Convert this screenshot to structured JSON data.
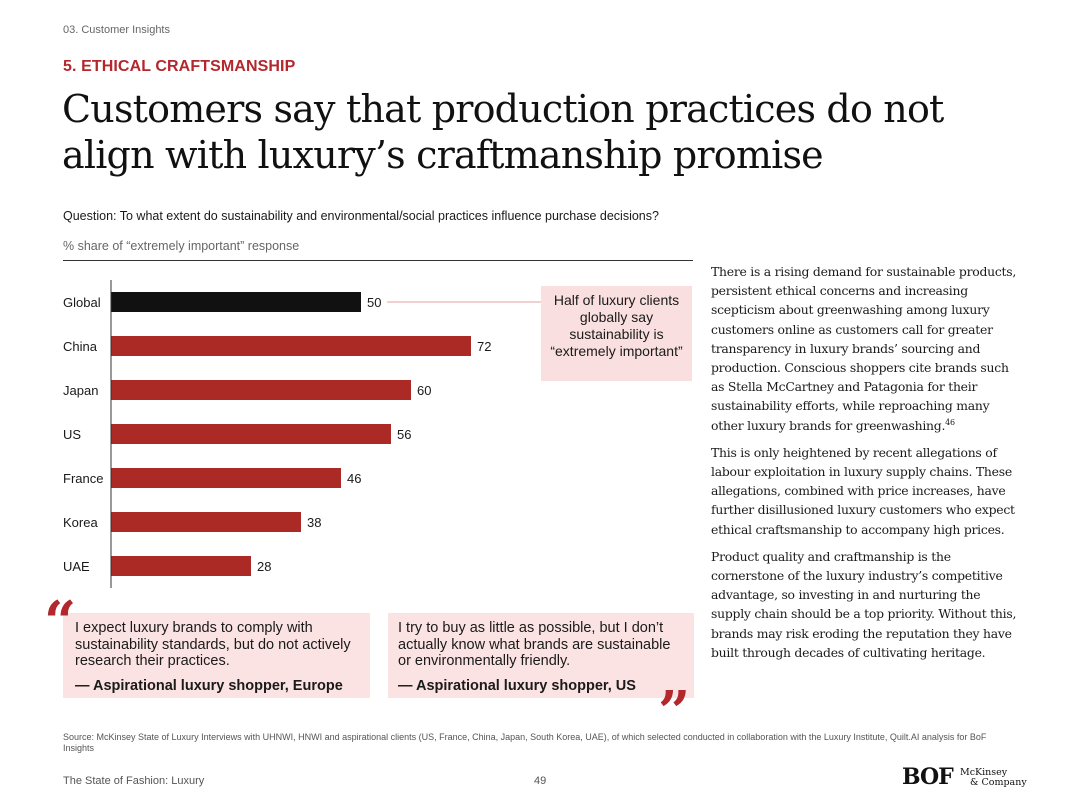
{
  "header": {
    "section": "03. Customer Insights",
    "kicker": "5. ETHICAL CRAFTSMANSHIP",
    "title": "Customers say that production practices do not align with luxury’s craftmanship promise"
  },
  "chart_data": {
    "type": "bar",
    "orientation": "horizontal",
    "title": "Question: To what extent do sustainability and environmental/social practices influence purchase decisions?",
    "unit_label": "% share of “extremely important” response",
    "categories": [
      "Global",
      "China",
      "Japan",
      "US",
      "France",
      "Korea",
      "UAE"
    ],
    "values": [
      50,
      72,
      60,
      56,
      46,
      38,
      28
    ],
    "highlight_category": "Global",
    "colors": {
      "highlight": "#111111",
      "default": "#ab2a25"
    },
    "xlim": [
      0,
      100
    ],
    "grid": false
  },
  "callout": {
    "text": "Half of luxury clients globally say sustainability is “extremely important”",
    "target": "Global"
  },
  "quotes": [
    {
      "text": "I expect luxury brands to comply with sustainability standards, but do not actively research their practices.",
      "attribution": "— Aspirational luxury shopper, Europe"
    },
    {
      "text": "I try to buy as little as possible, but I don’t actually know what brands are sustainable or environmentally friendly.",
      "attribution": "— Aspirational luxury shopper, US"
    }
  ],
  "quote_marks": {
    "open": "“",
    "close": "”"
  },
  "body": {
    "p1": "There is a rising demand for sustainable products, persistent ethical concerns and increasing scepticism about greenwashing among luxury customers online as customers call for greater transparency in luxury brands’ sourcing and production. Conscious shoppers cite brands such as Stella McCartney and Patagonia for their sustainability efforts, while reproaching many other luxury brands for greenwashing.",
    "p1_ref": "46",
    "p2": "This is only heightened by recent allegations of labour exploitation in luxury supply chains. These allegations, combined with price increases, have further disillusioned luxury customers who expect ethical craftsmanship to accompany high prices.",
    "p3": "Product quality and craftmanship is the cornerstone of the luxury industry’s competitive advantage, so investing in and nurturing the supply chain should be a top priority. Without this, brands may risk eroding the reputation they have built through decades of cultivating heritage."
  },
  "footer": {
    "source": "Source: McKinsey State of Luxury Interviews with UHNWI, HNWI and aspirational clients (US, France, China, Japan, South Korea, UAE), of which selected conducted in collaboration with the Luxury Institute, Quilt.AI analysis for BoF Insights",
    "publication": "The State of Fashion: Luxury",
    "page": "49",
    "logo_bof": "BOF",
    "logo_mckinsey_line1": "McKinsey",
    "logo_mckinsey_line2": "& Company"
  }
}
